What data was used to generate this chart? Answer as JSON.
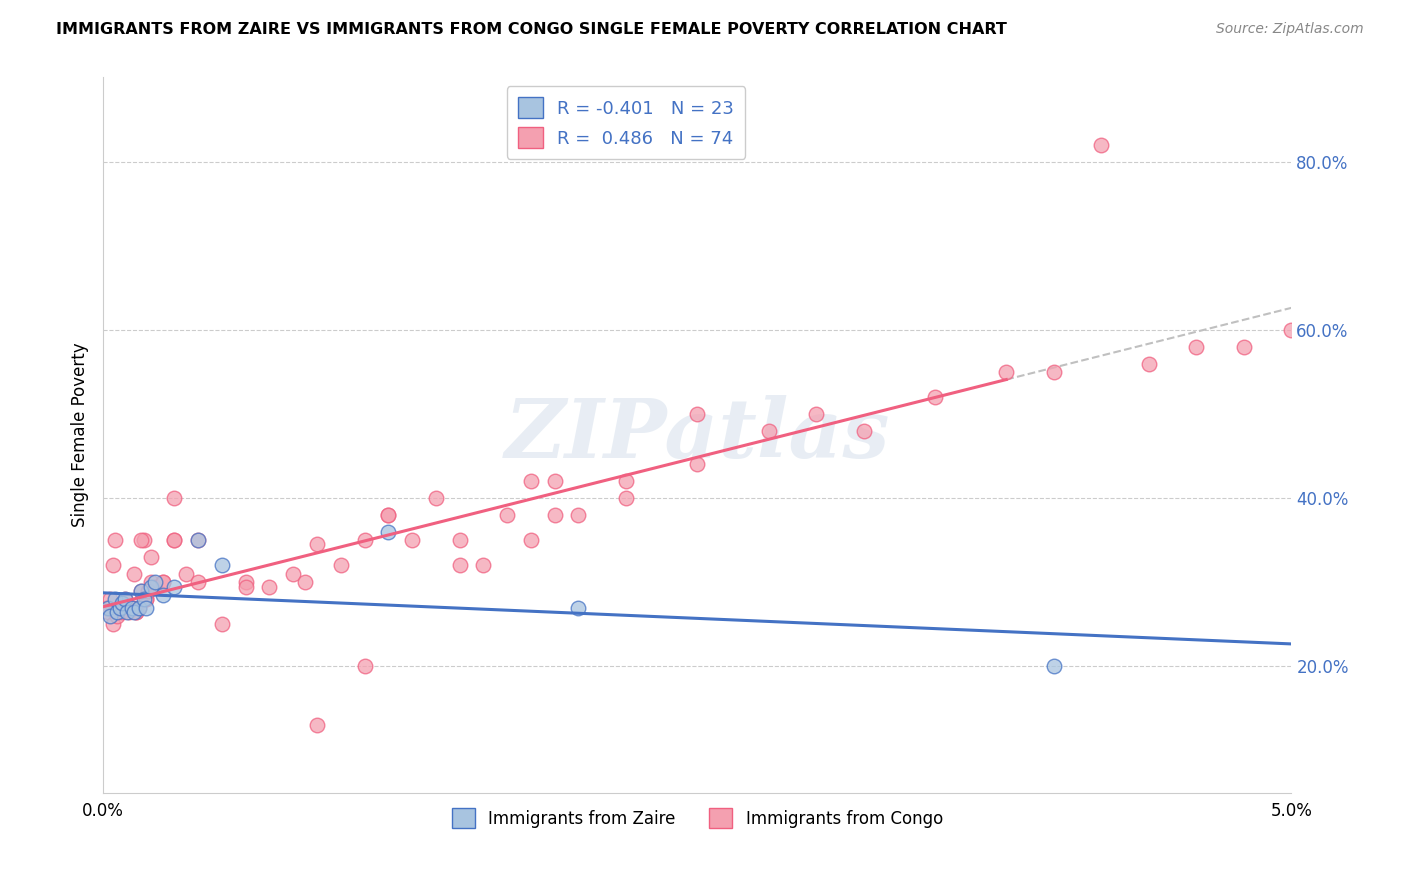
{
  "title": "IMMIGRANTS FROM ZAIRE VS IMMIGRANTS FROM CONGO SINGLE FEMALE POVERTY CORRELATION CHART",
  "source": "Source: ZipAtlas.com",
  "ylabel": "Single Female Poverty",
  "yticks": [
    "20.0%",
    "40.0%",
    "60.0%",
    "80.0%"
  ],
  "ytick_vals": [
    0.2,
    0.4,
    0.6,
    0.8
  ],
  "legend_label1": "Immigrants from Zaire",
  "legend_label2": "Immigrants from Congo",
  "R1": -0.401,
  "N1": 23,
  "R2": 0.486,
  "N2": 74,
  "color_zaire": "#a8c4e0",
  "color_congo": "#f4a0b0",
  "color_zaire_line": "#4472c4",
  "color_congo_line": "#f06080",
  "watermark": "ZIPatlas",
  "xlim": [
    0.0,
    0.05
  ],
  "ylim": [
    0.05,
    0.9
  ],
  "zaire_x": [
    0.0002,
    0.0003,
    0.0005,
    0.0006,
    0.0007,
    0.0008,
    0.0009,
    0.001,
    0.0012,
    0.0013,
    0.0015,
    0.0016,
    0.0017,
    0.0018,
    0.002,
    0.0022,
    0.0025,
    0.003,
    0.004,
    0.005,
    0.012,
    0.02,
    0.04
  ],
  "zaire_y": [
    0.27,
    0.26,
    0.28,
    0.265,
    0.27,
    0.275,
    0.28,
    0.265,
    0.27,
    0.265,
    0.27,
    0.29,
    0.28,
    0.27,
    0.295,
    0.3,
    0.285,
    0.295,
    0.35,
    0.32,
    0.36,
    0.27,
    0.2
  ],
  "congo_x": [
    0.0001,
    0.0002,
    0.0003,
    0.0004,
    0.0004,
    0.0005,
    0.0006,
    0.0007,
    0.0008,
    0.0009,
    0.001,
    0.0011,
    0.0012,
    0.0013,
    0.0014,
    0.0015,
    0.0016,
    0.0017,
    0.0018,
    0.002,
    0.0022,
    0.0025,
    0.003,
    0.0035,
    0.004,
    0.005,
    0.006,
    0.007,
    0.008,
    0.009,
    0.01,
    0.011,
    0.012,
    0.013,
    0.014,
    0.015,
    0.016,
    0.017,
    0.018,
    0.019,
    0.02,
    0.022,
    0.025,
    0.028,
    0.03,
    0.032,
    0.035,
    0.038,
    0.04,
    0.042,
    0.044,
    0.046,
    0.048,
    0.05,
    0.003,
    0.002,
    0.0013,
    0.0016,
    0.0025,
    0.0018,
    0.004,
    0.003,
    0.0019,
    0.0014,
    0.025,
    0.018,
    0.022,
    0.019,
    0.012,
    0.015,
    0.0085,
    0.006,
    0.009,
    0.011
  ],
  "congo_y": [
    0.27,
    0.265,
    0.28,
    0.25,
    0.32,
    0.35,
    0.26,
    0.27,
    0.265,
    0.28,
    0.27,
    0.265,
    0.27,
    0.27,
    0.265,
    0.27,
    0.29,
    0.35,
    0.28,
    0.3,
    0.295,
    0.3,
    0.35,
    0.31,
    0.35,
    0.25,
    0.3,
    0.295,
    0.31,
    0.345,
    0.32,
    0.35,
    0.38,
    0.35,
    0.4,
    0.35,
    0.32,
    0.38,
    0.35,
    0.42,
    0.38,
    0.4,
    0.44,
    0.48,
    0.5,
    0.48,
    0.52,
    0.55,
    0.55,
    0.82,
    0.56,
    0.58,
    0.58,
    0.6,
    0.4,
    0.33,
    0.31,
    0.35,
    0.3,
    0.28,
    0.3,
    0.35,
    0.29,
    0.265,
    0.5,
    0.42,
    0.42,
    0.38,
    0.38,
    0.32,
    0.3,
    0.295,
    0.13,
    0.2
  ]
}
